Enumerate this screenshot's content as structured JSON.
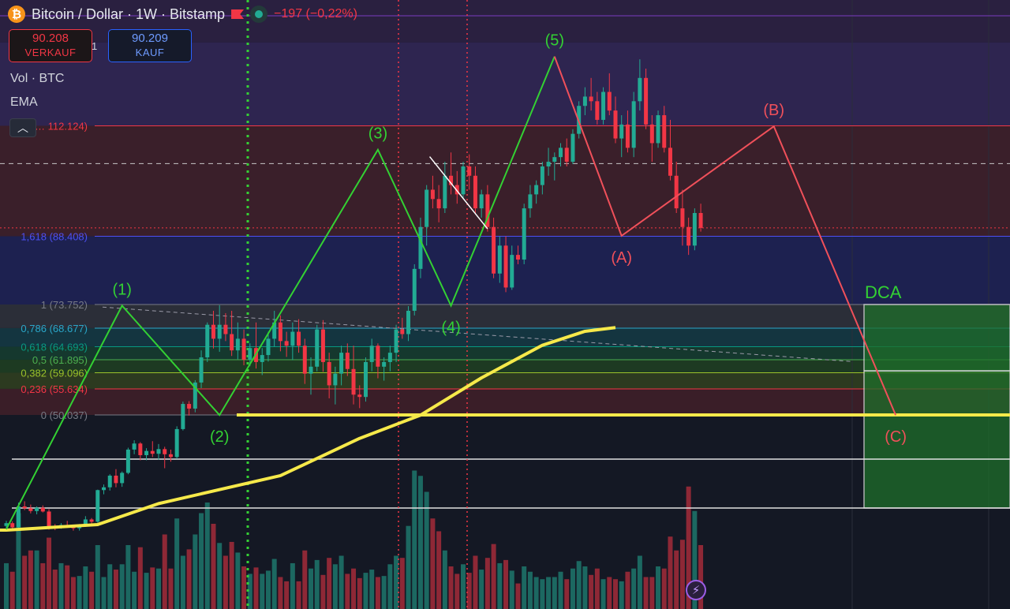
{
  "header": {
    "symbol_title": "Bitcoin / Dollar · 1W · Bitstamp",
    "change_text": "−197 (−0,22%)",
    "sell_price": "90.208",
    "sell_label": "VERKAUF",
    "buy_price": "90.209",
    "buy_label": "KAUF",
    "spread": "1"
  },
  "indicators": {
    "volume_label": "Vol · BTC",
    "ema_label": "EMA"
  },
  "colors": {
    "up": "#22ab94",
    "down": "#f23645",
    "wave": "#33d133",
    "abc": "#f0505a",
    "ema": "#f6e94a"
  },
  "chart_data": {
    "type": "candlestick",
    "title": "Bitcoin / Dollar · 1W · Bitstamp",
    "price_axis": {
      "unit": "USD thousand",
      "ylim": [
        14,
        124
      ]
    },
    "fib_levels": [
      {
        "ratio": "0",
        "label": "0 (50.037)",
        "price": 50.037
      },
      {
        "ratio": "0,236",
        "label": "0,236 (55.634)",
        "price": 55.634
      },
      {
        "ratio": "0,382",
        "label": "0,382 (59.096)",
        "price": 59.096
      },
      {
        "ratio": "0,5",
        "label": "0,5 (61.895)",
        "price": 61.895
      },
      {
        "ratio": "0,618",
        "label": "0,618 (64.693)",
        "price": 64.693
      },
      {
        "ratio": "0,786",
        "label": "0,786 (68.677)",
        "price": 68.677
      },
      {
        "ratio": "1",
        "label": "1 (73.752)",
        "price": 73.752
      },
      {
        "ratio": "1,618",
        "label": "1,618 (88.408)",
        "price": 88.408
      },
      {
        "ratio": "2,618",
        "label": ",6… 112.124)",
        "price": 112.124
      }
    ],
    "elliott_wave": [
      {
        "label": "",
        "week": 0,
        "price": 25.5
      },
      {
        "label": "(1)",
        "week": 19,
        "price": 73.5
      },
      {
        "label": "(2)",
        "week": 35,
        "price": 50.0
      },
      {
        "label": "(3)",
        "week": 61,
        "price": 107.0
      },
      {
        "label": "(4)",
        "week": 73,
        "price": 73.5
      },
      {
        "label": "(5)",
        "week": 90,
        "price": 127.0
      }
    ],
    "corrective_wave": [
      {
        "label": "",
        "week": 90,
        "price": 127.0
      },
      {
        "label": "(A)",
        "week": 101,
        "price": 88.5
      },
      {
        "label": "(B)",
        "week": 126,
        "price": 112.0
      },
      {
        "label": "(C)",
        "week": 146,
        "price": 50.0
      }
    ],
    "dca_zone": {
      "label": "DCA",
      "price_top": 73.752,
      "price_bottom": 34.0
    },
    "current_price": 90.208,
    "ema_points": [
      {
        "week": 0,
        "price": 25.3
      },
      {
        "week": 15,
        "price": 26.5
      },
      {
        "week": 25,
        "price": 31.0
      },
      {
        "week": 45,
        "price": 37.0
      },
      {
        "week": 58,
        "price": 45.0
      },
      {
        "week": 68,
        "price": 50.0
      },
      {
        "week": 78,
        "price": 58.0
      },
      {
        "week": 88,
        "price": 65.0
      },
      {
        "week": 95,
        "price": 68.0
      },
      {
        "week": 100,
        "price": 68.8
      }
    ],
    "candles": [
      [
        0,
        26.2,
        27.3,
        25.0,
        26.8
      ],
      [
        1,
        26.8,
        27.2,
        25.5,
        25.9
      ],
      [
        2,
        25.9,
        31.2,
        25.6,
        30.4
      ],
      [
        3,
        30.4,
        31.5,
        29.6,
        30.0
      ],
      [
        4,
        30.0,
        30.8,
        28.9,
        29.4
      ],
      [
        5,
        29.4,
        30.4,
        28.7,
        30.1
      ],
      [
        6,
        30.1,
        30.6,
        29.1,
        29.3
      ],
      [
        7,
        29.3,
        29.8,
        25.4,
        26.1
      ],
      [
        8,
        26.1,
        26.6,
        25.3,
        25.8
      ],
      [
        9,
        25.8,
        26.8,
        25.6,
        26.4
      ],
      [
        10,
        26.4,
        27.3,
        25.8,
        26.0
      ],
      [
        11,
        26.0,
        26.4,
        25.2,
        25.7
      ],
      [
        12,
        25.7,
        26.6,
        25.2,
        26.3
      ],
      [
        13,
        26.3,
        28.3,
        26.0,
        27.6
      ],
      [
        14,
        27.6,
        27.9,
        26.4,
        27.1
      ],
      [
        15,
        27.1,
        34.0,
        26.9,
        33.9
      ],
      [
        16,
        33.9,
        35.1,
        33.0,
        34.5
      ],
      [
        17,
        34.5,
        37.3,
        33.8,
        37.0
      ],
      [
        18,
        37.0,
        38.4,
        34.5,
        35.4
      ],
      [
        19,
        35.4,
        37.9,
        34.6,
        37.6
      ],
      [
        20,
        37.6,
        43.0,
        37.3,
        42.6
      ],
      [
        21,
        42.6,
        44.6,
        41.6,
        43.9
      ],
      [
        22,
        43.9,
        44.2,
        40.3,
        41.4
      ],
      [
        23,
        41.4,
        42.9,
        40.3,
        42.3
      ],
      [
        24,
        42.3,
        44.4,
        41.0,
        41.7
      ],
      [
        25,
        41.7,
        43.8,
        40.4,
        42.7
      ],
      [
        26,
        42.7,
        43.2,
        38.6,
        41.6
      ],
      [
        27,
        41.6,
        42.6,
        40.0,
        41.0
      ],
      [
        28,
        41.0,
        47.6,
        40.6,
        47.0
      ],
      [
        29,
        47.0,
        52.9,
        46.7,
        52.4
      ],
      [
        30,
        52.4,
        53.0,
        49.9,
        51.4
      ],
      [
        31,
        51.4,
        57.5,
        50.6,
        57.0
      ],
      [
        32,
        57.0,
        63.9,
        55.8,
        62.4
      ],
      [
        33,
        62.4,
        69.9,
        61.4,
        69.4
      ],
      [
        34,
        69.4,
        72.4,
        64.3,
        66.4
      ],
      [
        35,
        66.4,
        73.6,
        63.6,
        69.4
      ],
      [
        36,
        69.4,
        71.9,
        65.9,
        67.4
      ],
      [
        37,
        67.4,
        72.4,
        62.7,
        63.9
      ],
      [
        38,
        63.9,
        69.9,
        62.0,
        66.4
      ],
      [
        39,
        66.4,
        68.4,
        60.7,
        61.9
      ],
      [
        40,
        61.9,
        65.4,
        60.5,
        64.4
      ],
      [
        41,
        64.4,
        69.9,
        60.0,
        61.4
      ],
      [
        42,
        61.4,
        64.4,
        58.6,
        62.9
      ],
      [
        43,
        62.9,
        67.9,
        61.5,
        66.4
      ],
      [
        44,
        66.4,
        72.4,
        64.7,
        69.9
      ],
      [
        45,
        69.9,
        71.4,
        63.7,
        65.9
      ],
      [
        46,
        65.9,
        67.9,
        62.5,
        64.9
      ],
      [
        47,
        64.9,
        69.9,
        61.8,
        67.9
      ],
      [
        48,
        67.9,
        70.6,
        63.4,
        64.9
      ],
      [
        49,
        64.9,
        66.4,
        56.7,
        58.9
      ],
      [
        50,
        58.9,
        62.4,
        54.4,
        60.4
      ],
      [
        51,
        60.4,
        69.4,
        59.4,
        68.4
      ],
      [
        52,
        68.4,
        70.4,
        59.3,
        61.4
      ],
      [
        53,
        61.4,
        63.4,
        53.6,
        56.4
      ],
      [
        54,
        56.4,
        60.4,
        52.3,
        58.9
      ],
      [
        55,
        58.9,
        64.9,
        56.4,
        63.4
      ],
      [
        56,
        63.4,
        65.4,
        58.4,
        59.9
      ],
      [
        57,
        59.9,
        64.9,
        52.3,
        54.4
      ],
      [
        58,
        54.4,
        56.4,
        51.5,
        53.9
      ],
      [
        59,
        53.9,
        62.4,
        52.9,
        61.4
      ],
      [
        60,
        61.4,
        66.4,
        59.4,
        64.9
      ],
      [
        61,
        64.9,
        65.4,
        57.9,
        60.4
      ],
      [
        62,
        60.4,
        62.4,
        57.4,
        61.4
      ],
      [
        63,
        61.4,
        64.9,
        59.4,
        63.4
      ],
      [
        64,
        63.4,
        69.4,
        61.4,
        68.4
      ],
      [
        65,
        68.4,
        70.9,
        66.4,
        67.4
      ],
      [
        66,
        67.4,
        73.4,
        65.9,
        72.4
      ],
      [
        67,
        72.4,
        82.4,
        71.4,
        81.4
      ],
      [
        68,
        81.4,
        92.4,
        79.4,
        90.4
      ],
      [
        69,
        90.4,
        99.4,
        86.4,
        98.4
      ],
      [
        70,
        98.4,
        101.4,
        94.4,
        96.4
      ],
      [
        71,
        96.4,
        99.4,
        91.4,
        94.4
      ],
      [
        72,
        94.4,
        104.4,
        93.4,
        101.4
      ],
      [
        73,
        101.4,
        106.4,
        97.4,
        99.4
      ],
      [
        74,
        99.4,
        102.4,
        95.4,
        97.4
      ],
      [
        75,
        97.4,
        104.4,
        96.4,
        103.4
      ],
      [
        76,
        103.4,
        106.0,
        98.4,
        101.4
      ],
      [
        77,
        101.4,
        103.4,
        93.4,
        94.4
      ],
      [
        78,
        94.4,
        98.4,
        92.4,
        97.4
      ],
      [
        79,
        97.4,
        99.4,
        89.4,
        90.4
      ],
      [
        80,
        90.4,
        92.4,
        79.4,
        80.4
      ],
      [
        81,
        80.4,
        88.4,
        78.4,
        86.4
      ],
      [
        82,
        86.4,
        88.4,
        76.4,
        77.4
      ],
      [
        83,
        77.4,
        86.4,
        76.9,
        84.4
      ],
      [
        84,
        84.4,
        86.4,
        82.4,
        83.4
      ],
      [
        85,
        83.4,
        95.4,
        82.4,
        94.4
      ],
      [
        86,
        94.4,
        99.4,
        92.4,
        97.4
      ],
      [
        87,
        97.4,
        100.4,
        95.4,
        99.4
      ],
      [
        88,
        99.4,
        104.4,
        97.4,
        103.4
      ],
      [
        89,
        103.4,
        107.4,
        101.4,
        104.4
      ],
      [
        90,
        104.4,
        106.4,
        100.4,
        105.4
      ],
      [
        91,
        105.4,
        108.4,
        103.4,
        107.4
      ],
      [
        92,
        107.4,
        109.4,
        103.4,
        104.4
      ],
      [
        93,
        104.4,
        111.4,
        103.9,
        110.4
      ],
      [
        94,
        110.4,
        117.4,
        109.4,
        116.4
      ],
      [
        95,
        116.4,
        120.4,
        114.4,
        118.4
      ],
      [
        96,
        118.4,
        122.4,
        115.4,
        117.4
      ],
      [
        97,
        117.4,
        119.4,
        112.4,
        113.4
      ],
      [
        98,
        113.4,
        120.4,
        112.4,
        119.4
      ],
      [
        99,
        119.4,
        123.4,
        114.4,
        115.4
      ],
      [
        100,
        115.4,
        118.4,
        108.4,
        109.4
      ],
      [
        101,
        109.4,
        114.4,
        105.4,
        112.4
      ],
      [
        102,
        112.4,
        115.4,
        106.4,
        107.4
      ],
      [
        103,
        107.4,
        119.4,
        105.4,
        117.4
      ],
      [
        104,
        117.4,
        126.4,
        115.4,
        122.4
      ],
      [
        105,
        122.4,
        124.4,
        111.4,
        112.4
      ],
      [
        106,
        112.4,
        114.4,
        104.4,
        108.4
      ],
      [
        107,
        108.4,
        115.4,
        107.4,
        114.4
      ],
      [
        108,
        114.4,
        116.4,
        106.4,
        107.4
      ],
      [
        109,
        107.4,
        113.4,
        100.4,
        101.4
      ],
      [
        110,
        101.4,
        104.4,
        93.4,
        94.4
      ],
      [
        111,
        94.4,
        98.4,
        86.4,
        90.4
      ],
      [
        112,
        90.4,
        92.4,
        84.4,
        86.4
      ],
      [
        113,
        86.4,
        94.4,
        85.4,
        93.4
      ],
      [
        114,
        93.4,
        95.4,
        89.4,
        90.2
      ]
    ],
    "volumes": [
      [
        0,
        0.43
      ],
      [
        1,
        0.35
      ],
      [
        2,
        0.9
      ],
      [
        3,
        0.5
      ],
      [
        4,
        0.55
      ],
      [
        5,
        0.55
      ],
      [
        6,
        0.43
      ],
      [
        7,
        0.67
      ],
      [
        8,
        0.37
      ],
      [
        9,
        0.43
      ],
      [
        10,
        0.41
      ],
      [
        11,
        0.3
      ],
      [
        12,
        0.31
      ],
      [
        13,
        0.4
      ],
      [
        14,
        0.35
      ],
      [
        15,
        0.6
      ],
      [
        16,
        0.3
      ],
      [
        17,
        0.42
      ],
      [
        18,
        0.37
      ],
      [
        19,
        0.42
      ],
      [
        20,
        0.6
      ],
      [
        21,
        0.35
      ],
      [
        22,
        0.58
      ],
      [
        23,
        0.34
      ],
      [
        24,
        0.39
      ],
      [
        25,
        0.38
      ],
      [
        26,
        0.7
      ],
      [
        27,
        0.38
      ],
      [
        28,
        0.85
      ],
      [
        29,
        0.5
      ],
      [
        30,
        0.56
      ],
      [
        31,
        0.7
      ],
      [
        32,
        0.9
      ],
      [
        33,
        1.0
      ],
      [
        34,
        0.8
      ],
      [
        35,
        0.62
      ],
      [
        36,
        0.5
      ],
      [
        37,
        0.63
      ],
      [
        38,
        0.53
      ],
      [
        39,
        0.4
      ],
      [
        40,
        0.33
      ],
      [
        41,
        0.39
      ],
      [
        42,
        0.33
      ],
      [
        43,
        0.36
      ],
      [
        44,
        0.47
      ],
      [
        45,
        0.3
      ],
      [
        46,
        0.26
      ],
      [
        47,
        0.43
      ],
      [
        48,
        0.26
      ],
      [
        49,
        0.55
      ],
      [
        50,
        0.38
      ],
      [
        51,
        0.46
      ],
      [
        52,
        0.32
      ],
      [
        53,
        0.48
      ],
      [
        54,
        0.42
      ],
      [
        55,
        0.5
      ],
      [
        56,
        0.33
      ],
      [
        57,
        0.38
      ],
      [
        58,
        0.29
      ],
      [
        59,
        0.34
      ],
      [
        60,
        0.37
      ],
      [
        61,
        0.3
      ],
      [
        62,
        0.31
      ],
      [
        63,
        0.42
      ],
      [
        64,
        0.5
      ],
      [
        65,
        0.48
      ],
      [
        66,
        0.78
      ],
      [
        67,
        1.3
      ],
      [
        68,
        1.25
      ],
      [
        69,
        1.1
      ],
      [
        70,
        0.85
      ],
      [
        71,
        0.73
      ],
      [
        72,
        0.55
      ],
      [
        73,
        0.4
      ],
      [
        74,
        0.33
      ],
      [
        75,
        0.42
      ],
      [
        76,
        0.34
      ],
      [
        77,
        0.5
      ],
      [
        78,
        0.37
      ],
      [
        79,
        0.48
      ],
      [
        80,
        0.61
      ],
      [
        81,
        0.43
      ],
      [
        82,
        0.46
      ],
      [
        83,
        0.36
      ],
      [
        84,
        0.24
      ],
      [
        85,
        0.4
      ],
      [
        86,
        0.35
      ],
      [
        87,
        0.3
      ],
      [
        88,
        0.28
      ],
      [
        89,
        0.3
      ],
      [
        90,
        0.3
      ],
      [
        91,
        0.35
      ],
      [
        92,
        0.28
      ],
      [
        93,
        0.38
      ],
      [
        94,
        0.45
      ],
      [
        95,
        0.4
      ],
      [
        96,
        0.32
      ],
      [
        97,
        0.38
      ],
      [
        98,
        0.28
      ],
      [
        99,
        0.3
      ],
      [
        100,
        0.28
      ],
      [
        101,
        0.26
      ],
      [
        102,
        0.35
      ],
      [
        103,
        0.38
      ],
      [
        104,
        0.5
      ],
      [
        105,
        0.3
      ],
      [
        106,
        0.3
      ],
      [
        107,
        0.4
      ],
      [
        108,
        0.38
      ],
      [
        109,
        0.68
      ],
      [
        110,
        0.55
      ],
      [
        111,
        0.65
      ],
      [
        112,
        1.15
      ],
      [
        113,
        0.92
      ],
      [
        114,
        0.6
      ]
    ]
  }
}
